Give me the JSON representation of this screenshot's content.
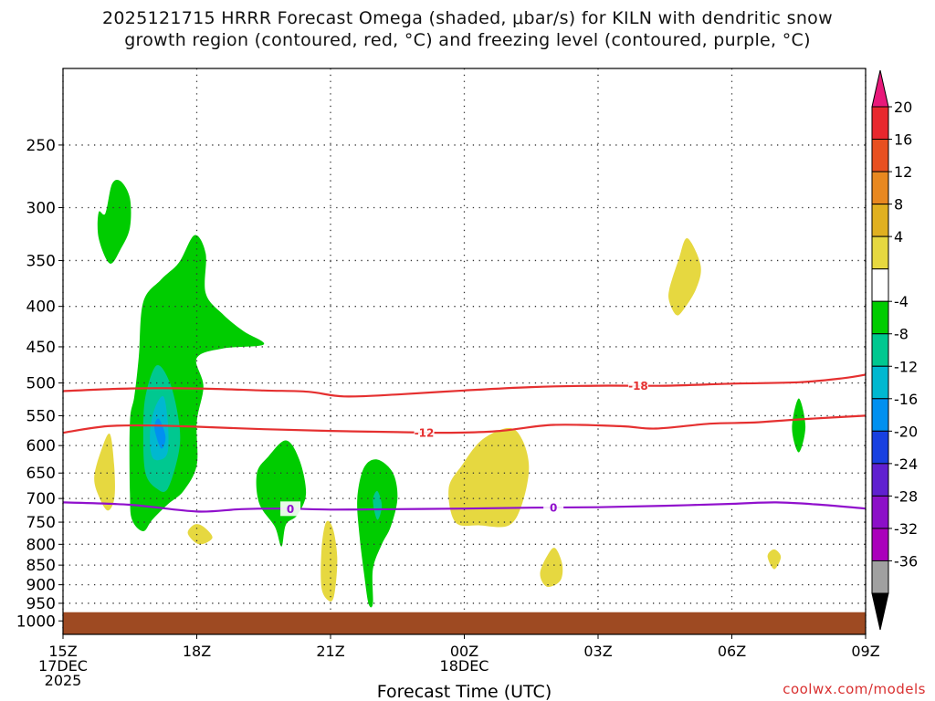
{
  "title": {
    "line1": "2025121715 HRRR Forecast Omega (shaded, μbar/s) for KILN with dendritic snow",
    "line2": "growth region (contoured, red, °C) and freezing level (contoured, purple, °C)"
  },
  "credit": "coolwx.com/models",
  "chart_data": {
    "type": "contour",
    "xlabel": "Forecast Time (UTC)",
    "ylabel": "",
    "x_range_hours": [
      0,
      18
    ],
    "y_range_hpa": [
      200,
      1040
    ],
    "x_ticks": [
      {
        "hour": 0,
        "lines": [
          "15Z",
          "17DEC",
          "2025"
        ]
      },
      {
        "hour": 3,
        "lines": [
          "18Z"
        ]
      },
      {
        "hour": 6,
        "lines": [
          "21Z"
        ]
      },
      {
        "hour": 9,
        "lines": [
          "00Z",
          "18DEC"
        ]
      },
      {
        "hour": 12,
        "lines": [
          "03Z"
        ]
      },
      {
        "hour": 15,
        "lines": [
          "06Z"
        ]
      },
      {
        "hour": 18,
        "lines": [
          "09Z"
        ]
      }
    ],
    "y_ticks": [
      250,
      300,
      350,
      400,
      450,
      500,
      550,
      600,
      650,
      700,
      750,
      800,
      850,
      900,
      950,
      1000
    ],
    "surface_pressure_hpa": 975,
    "colorbar": {
      "labels": [
        "20",
        "16",
        "12",
        "8",
        "4",
        "-4",
        "-8",
        "-12",
        "-16",
        "-20",
        "-24",
        "-28",
        "-32",
        "-36"
      ],
      "colors": [
        "#e8197a",
        "#e8282e",
        "#e85020",
        "#e88820",
        "#e0b020",
        "#e6d840",
        "#ffffff",
        "#00cc00",
        "#00c890",
        "#00b8d0",
        "#0090f0",
        "#1840e0",
        "#6020d0",
        "#8c10c8",
        "#aa00bb",
        "#a0a0a0",
        "#000000"
      ]
    },
    "contours": [
      {
        "name": "-18",
        "color": "#e53030",
        "label_hour": 12.9,
        "points": [
          [
            0,
            512
          ],
          [
            1.5,
            508
          ],
          [
            3,
            508
          ],
          [
            4.5,
            511
          ],
          [
            5.5,
            513
          ],
          [
            6.3,
            520
          ],
          [
            7.5,
            517
          ],
          [
            9,
            511
          ],
          [
            10.5,
            506
          ],
          [
            12,
            504
          ],
          [
            13.5,
            504
          ],
          [
            15,
            501
          ],
          [
            16.5,
            499
          ],
          [
            17.5,
            493
          ],
          [
            18,
            488
          ]
        ]
      },
      {
        "name": "-12",
        "color": "#e53030",
        "label_hour": 8.1,
        "points": [
          [
            0,
            578
          ],
          [
            1,
            567
          ],
          [
            2,
            566
          ],
          [
            3,
            568
          ],
          [
            4.5,
            572
          ],
          [
            6,
            575
          ],
          [
            7.5,
            577
          ],
          [
            8.7,
            578
          ],
          [
            9.8,
            575
          ],
          [
            11,
            565
          ],
          [
            12.5,
            567
          ],
          [
            13.3,
            571
          ],
          [
            14.5,
            563
          ],
          [
            15.5,
            561
          ],
          [
            16.5,
            556
          ],
          [
            18,
            550
          ]
        ]
      },
      {
        "name": "0",
        "color": "#9010cc",
        "label_hour": 5.1,
        "points": [
          [
            0,
            708
          ],
          [
            1.5,
            713
          ],
          [
            3,
            727
          ],
          [
            4,
            722
          ],
          [
            5,
            721
          ],
          [
            6,
            723
          ],
          [
            7.5,
            722
          ],
          [
            9,
            721
          ],
          [
            10.5,
            719
          ],
          [
            12,
            718
          ],
          [
            13.5,
            715
          ],
          [
            15,
            711
          ],
          [
            16,
            708
          ],
          [
            17,
            713
          ],
          [
            18,
            721
          ]
        ]
      },
      {
        "name": "0",
        "color": "#9010cc",
        "label_hour": 11.0,
        "points": []
      }
    ],
    "shaded_regions": [
      {
        "value": "-4",
        "color": "#00cc00",
        "points": [
          [
            0.95,
            305
          ],
          [
            1.1,
            280
          ],
          [
            1.3,
            278
          ],
          [
            1.5,
            292
          ],
          [
            1.5,
            318
          ],
          [
            1.3,
            338
          ],
          [
            1.05,
            353
          ],
          [
            0.8,
            328
          ],
          [
            0.8,
            304
          ]
        ]
      },
      {
        "value": "-4",
        "color": "#00cc00",
        "points": [
          [
            1.7,
            463
          ],
          [
            1.8,
            395
          ],
          [
            2.2,
            370
          ],
          [
            2.6,
            352
          ],
          [
            2.95,
            325
          ],
          [
            3.2,
            343
          ],
          [
            3.2,
            385
          ],
          [
            3.6,
            410
          ],
          [
            4.05,
            430
          ],
          [
            4.5,
            447
          ],
          [
            3.6,
            452
          ],
          [
            3.0,
            465
          ],
          [
            3.15,
            505
          ],
          [
            3.0,
            560
          ],
          [
            3.0,
            635
          ],
          [
            2.7,
            685
          ],
          [
            2.35,
            712
          ],
          [
            2.0,
            745
          ],
          [
            1.8,
            770
          ],
          [
            1.55,
            745
          ],
          [
            1.5,
            690
          ],
          [
            1.5,
            560
          ],
          [
            1.6,
            520
          ]
        ]
      },
      {
        "value": "-8",
        "color": "#00c890",
        "points": [
          [
            1.8,
            580
          ],
          [
            1.85,
            520
          ],
          [
            2.1,
            475
          ],
          [
            2.4,
            500
          ],
          [
            2.6,
            560
          ],
          [
            2.6,
            610
          ],
          [
            2.35,
            680
          ],
          [
            2.1,
            680
          ],
          [
            1.85,
            650
          ]
        ]
      },
      {
        "value": "-12",
        "color": "#00b8d0",
        "points": [
          [
            1.95,
            580
          ],
          [
            2.05,
            540
          ],
          [
            2.25,
            520
          ],
          [
            2.35,
            560
          ],
          [
            2.35,
            610
          ],
          [
            2.2,
            625
          ],
          [
            2.0,
            620
          ]
        ]
      },
      {
        "value": "-16",
        "color": "#0090f0",
        "points": [
          [
            2.05,
            570
          ],
          [
            2.15,
            555
          ],
          [
            2.3,
            585
          ],
          [
            2.2,
            605
          ]
        ]
      },
      {
        "value": "-4",
        "color": "#00cc00",
        "points": [
          [
            4.35,
            650
          ],
          [
            4.6,
            620
          ],
          [
            5.0,
            591
          ],
          [
            5.3,
            625
          ],
          [
            5.45,
            690
          ],
          [
            5.25,
            735
          ],
          [
            5.0,
            755
          ],
          [
            4.9,
            805
          ],
          [
            4.75,
            760
          ],
          [
            4.4,
            710
          ]
        ]
      },
      {
        "value": "-4",
        "color": "#00cc00",
        "points": [
          [
            6.6,
            700
          ],
          [
            6.75,
            640
          ],
          [
            7.05,
            625
          ],
          [
            7.4,
            650
          ],
          [
            7.5,
            700
          ],
          [
            7.35,
            760
          ],
          [
            7.15,
            800
          ],
          [
            6.95,
            860
          ],
          [
            6.95,
            950
          ],
          [
            6.85,
            950
          ],
          [
            6.75,
            870
          ],
          [
            6.65,
            780
          ]
        ]
      },
      {
        "value": "-8",
        "color": "#00c890",
        "points": [
          [
            6.95,
            705
          ],
          [
            7.05,
            685
          ],
          [
            7.15,
            715
          ],
          [
            7.05,
            745
          ]
        ]
      },
      {
        "value": "-4",
        "color": "#00cc00",
        "points": [
          [
            16.35,
            570
          ],
          [
            16.5,
            523
          ],
          [
            16.65,
            568
          ],
          [
            16.5,
            612
          ]
        ]
      },
      {
        "value": "4",
        "color": "#e6d840",
        "points": [
          [
            0.7,
            658
          ],
          [
            0.85,
            610
          ],
          [
            1.05,
            580
          ],
          [
            1.15,
            640
          ],
          [
            1.15,
            700
          ],
          [
            1.0,
            725
          ],
          [
            0.8,
            695
          ]
        ]
      },
      {
        "value": "4",
        "color": "#e6d840",
        "points": [
          [
            2.8,
            775
          ],
          [
            2.95,
            755
          ],
          [
            3.15,
            760
          ],
          [
            3.35,
            785
          ],
          [
            3.05,
            800
          ]
        ]
      },
      {
        "value": "4",
        "color": "#e6d840",
        "points": [
          [
            5.8,
            810
          ],
          [
            5.9,
            750
          ],
          [
            6.05,
            763
          ],
          [
            6.15,
            830
          ],
          [
            6.1,
            915
          ],
          [
            6.0,
            945
          ],
          [
            5.8,
            910
          ]
        ]
      },
      {
        "value": "4",
        "color": "#e6d840",
        "points": [
          [
            8.65,
            680
          ],
          [
            8.95,
            635
          ],
          [
            9.4,
            590
          ],
          [
            10.0,
            570
          ],
          [
            10.3,
            590
          ],
          [
            10.45,
            640
          ],
          [
            10.3,
            710
          ],
          [
            10.0,
            757
          ],
          [
            9.35,
            757
          ],
          [
            8.8,
            750
          ]
        ]
      },
      {
        "value": "4",
        "color": "#e6d840",
        "points": [
          [
            10.7,
            870
          ],
          [
            10.9,
            820
          ],
          [
            11.05,
            810
          ],
          [
            11.2,
            850
          ],
          [
            11.15,
            890
          ],
          [
            10.85,
            905
          ]
        ]
      },
      {
        "value": "4",
        "color": "#e6d840",
        "points": [
          [
            13.6,
            380
          ],
          [
            13.8,
            350
          ],
          [
            14.0,
            328
          ],
          [
            14.3,
            355
          ],
          [
            14.2,
            380
          ],
          [
            13.9,
            405
          ],
          [
            13.75,
            410
          ],
          [
            13.6,
            395
          ]
        ]
      },
      {
        "value": "4",
        "color": "#e6d840",
        "points": [
          [
            15.8,
            828
          ],
          [
            15.95,
            812
          ],
          [
            16.1,
            830
          ],
          [
            15.95,
            860
          ]
        ]
      }
    ],
    "terrain_color": "#9e4a22"
  }
}
